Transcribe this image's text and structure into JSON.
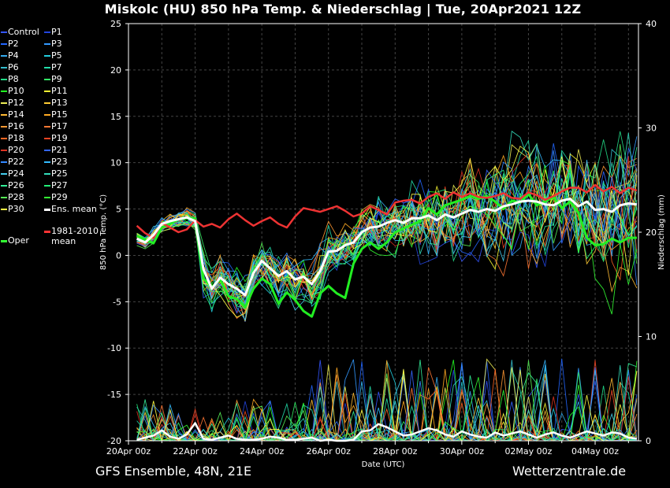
{
  "title": "Miskolc  (HU)  850 hPa Temp. & Niederschlag | Tue, 20Apr2021 12Z",
  "footer": {
    "left": "GFS Ensemble, 48N, 21E",
    "right": "Wetterzentrale.de"
  },
  "legend": [
    {
      "label": "Control",
      "color": "#3355ff"
    },
    {
      "label": "P1",
      "color": "#2244dd"
    },
    {
      "label": "P2",
      "color": "#2266ff"
    },
    {
      "label": "P3",
      "color": "#3399ff"
    },
    {
      "label": "P4",
      "color": "#33aaee"
    },
    {
      "label": "P5",
      "color": "#22ccdd"
    },
    {
      "label": "P6",
      "color": "#33bbcc"
    },
    {
      "label": "P7",
      "color": "#22ddaa"
    },
    {
      "label": "P8",
      "color": "#22dd88"
    },
    {
      "label": "P9",
      "color": "#33ee66"
    },
    {
      "label": "P10",
      "color": "#22ff22"
    },
    {
      "label": "P11",
      "color": "#ffff33"
    },
    {
      "label": "P12",
      "color": "#eeee55"
    },
    {
      "label": "P13",
      "color": "#ffcc33"
    },
    {
      "label": "P14",
      "color": "#ffbb33"
    },
    {
      "label": "P15",
      "color": "#ffaa22"
    },
    {
      "label": "P16",
      "color": "#ff9933"
    },
    {
      "label": "P17",
      "color": "#ff7733"
    },
    {
      "label": "P18",
      "color": "#ff6622"
    },
    {
      "label": "P19",
      "color": "#ee4422"
    },
    {
      "label": "P20",
      "color": "#dd3322"
    },
    {
      "label": "P21",
      "color": "#3366ff"
    },
    {
      "label": "P22",
      "color": "#3388ff"
    },
    {
      "label": "P23",
      "color": "#33bbff"
    },
    {
      "label": "P24",
      "color": "#44ccee"
    },
    {
      "label": "P25",
      "color": "#33ddbb"
    },
    {
      "label": "P26",
      "color": "#33ee99"
    },
    {
      "label": "P27",
      "color": "#22ee77"
    },
    {
      "label": "P28",
      "color": "#55ee55"
    },
    {
      "label": "P29",
      "color": "#33ff33"
    },
    {
      "label": "P30",
      "color": "#ffff44"
    },
    {
      "label": "Ens. mean",
      "color": "#ffffff"
    },
    {
      "label": "1981-2010 mean",
      "color": "#ff3333"
    },
    {
      "label": "Oper",
      "color": "#33ff33"
    }
  ],
  "chart_data": {
    "type": "line",
    "xlabel": "Date (UTC)",
    "ylabel": "850 hPa Temp. (°C)",
    "y2label": "Niederschlag (mm)",
    "ylim": [
      -20,
      25
    ],
    "y2lim": [
      0,
      40
    ],
    "yticks": [
      -20,
      -15,
      -10,
      -5,
      0,
      5,
      10,
      15,
      20,
      25
    ],
    "y2ticks": [
      0,
      10,
      20,
      30,
      40
    ],
    "xticks": [
      "20Apr 00z",
      "22Apr 00z",
      "24Apr 00z",
      "26Apr 00z",
      "28Apr 00z",
      "30Apr 00z",
      "02May 00z",
      "04May 00z"
    ],
    "xrange_days": [
      0,
      15.3
    ],
    "grid": true,
    "step_days": 0.25,
    "start_day": 0.25,
    "series": [
      {
        "name": "Ens. mean",
        "axis": "temp",
        "values": [
          1.8,
          1.4,
          2.2,
          3.4,
          3.7,
          3.9,
          4.1,
          3.7,
          -1.5,
          -3.6,
          -2.4,
          -3.1,
          -3.6,
          -4.3,
          -1.9,
          -0.6,
          -1.4,
          -2.2,
          -1.7,
          -2.6,
          -2.3,
          -3.1,
          -1.7,
          0.4,
          0.5,
          1.1,
          1.4,
          2.5,
          3.0,
          3.1,
          3.5,
          3.8,
          3.5,
          4.0,
          4.0,
          4.3,
          3.8,
          4.4,
          4.1,
          4.5,
          4.9,
          4.7,
          5.0,
          4.8,
          5.3,
          5.5,
          5.8,
          5.9,
          5.8,
          5.5,
          5.4,
          5.9,
          6.1,
          5.3,
          5.8,
          4.9,
          5.0,
          4.7,
          5.4,
          5.6,
          5.5
        ]
      },
      {
        "name": "1981-2010 mean",
        "axis": "temp",
        "values": [
          3.2,
          2.4,
          1.9,
          3.5,
          3.0,
          2.5,
          2.8,
          3.8,
          3.1,
          3.4,
          3.0,
          3.9,
          4.5,
          3.8,
          3.2,
          3.7,
          4.1,
          3.4,
          3.0,
          4.2,
          5.1,
          4.9,
          4.7,
          5.0,
          5.3,
          4.8,
          4.2,
          4.5,
          5.3,
          4.9,
          4.4,
          5.7,
          5.9,
          6.0,
          5.6,
          6.3,
          6.7,
          6.1,
          6.8,
          6.3,
          6.7,
          6.3,
          6.2,
          6.4,
          6.7,
          6.2,
          6.1,
          6.8,
          6.5,
          6.0,
          6.4,
          6.9,
          7.3,
          7.3,
          6.8,
          7.6,
          6.9,
          7.4,
          6.7,
          7.3,
          7.0
        ]
      },
      {
        "name": "Oper",
        "axis": "temp",
        "values": [
          2.1,
          1.7,
          1.3,
          3.0,
          3.4,
          3.9,
          4.0,
          4.0,
          -2.5,
          -3.4,
          -2.6,
          -4.4,
          -4.7,
          -5.6,
          -3.6,
          -2.5,
          -3.1,
          -5.2,
          -4.0,
          -4.8,
          -6.0,
          -6.6,
          -4.1,
          -3.3,
          -4.1,
          -4.6,
          -0.9,
          0.7,
          1.4,
          0.7,
          1.4,
          2.5,
          2.9,
          3.3,
          3.7,
          5.1,
          4.4,
          5.4,
          5.7,
          6.0,
          6.4,
          6.1,
          6.4,
          5.8,
          5.0,
          5.9,
          5.7,
          6.6,
          5.4,
          5.8,
          6.3,
          5.1,
          5.8,
          4.6,
          1.9,
          1.1,
          1.2,
          1.8,
          1.4,
          1.9,
          1.9
        ]
      },
      {
        "name": "Ens. mean precip",
        "axis": "precip",
        "values": [
          0.1,
          0.3,
          0.5,
          1.0,
          0.4,
          0.2,
          0.6,
          1.7,
          0.2,
          0.1,
          0.3,
          0.5,
          0.2,
          0.1,
          0.1,
          0.2,
          0.4,
          0.3,
          0.1,
          0.1,
          0.2,
          0.3,
          0.0,
          0.1,
          0.0,
          0.0,
          0.1,
          0.9,
          1.0,
          1.6,
          1.3,
          0.9,
          0.5,
          0.6,
          0.9,
          1.2,
          1.0,
          0.6,
          0.4,
          0.9,
          0.6,
          0.4,
          0.3,
          0.8,
          0.5,
          0.7,
          0.9,
          0.6,
          0.3,
          0.6,
          0.8,
          0.5,
          0.3,
          0.6,
          0.9,
          0.7,
          0.5,
          0.8,
          0.7,
          0.3,
          0.2
        ]
      }
    ]
  }
}
